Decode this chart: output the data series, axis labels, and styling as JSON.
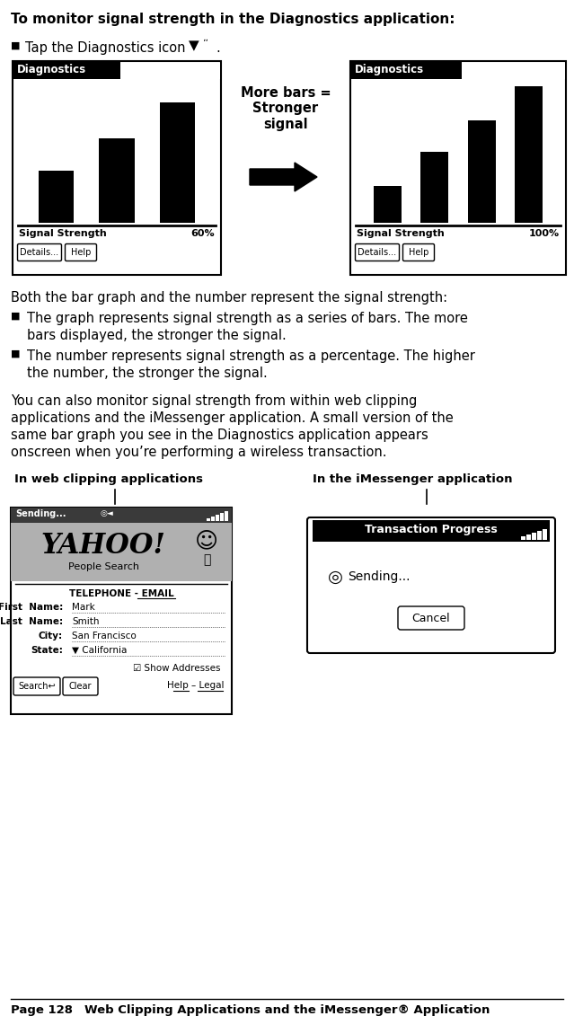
{
  "title_bold": "To monitor signal strength in the Diagnostics application:",
  "bullet1_pre": "Tap the Diagnostics icon",
  "bullet1_post": ".",
  "para1": "Both the bar graph and the number represent the signal strength:",
  "bullet2a_l1": "The graph represents signal strength as a series of bars. The more",
  "bullet2a_l2": "bars displayed, the stronger the signal.",
  "bullet2b_l1": "The number represents signal strength as a percentage. The higher",
  "bullet2b_l2": "the number, the stronger the signal.",
  "para2_l1": "You can also monitor signal strength from within web clipping",
  "para2_l2": "applications and the iMessenger application. A small version of the",
  "para2_l3": "same bar graph you see in the Diagnostics application appears",
  "para2_l4": "onscreen when you’re performing a wireless transaction.",
  "label_web": "In web clipping applications",
  "label_imessenger": "In the iMessenger application",
  "footer_left": "Page 128",
  "footer_right": "Web Clipping Applications and the iMessenger® Application",
  "diag_title": "Diagnostics",
  "signal_label": "Signal Strength",
  "signal_60": "60%",
  "signal_100": "100%",
  "more_bars_text": "More bars =\nStronger\nsignal",
  "sending_text": "Sending...",
  "transaction_title": "Transaction Progress",
  "cancel_text": "Cancel",
  "telephone_text": "TELEPHONE - EMAIL",
  "people_search": "People Search",
  "yahoo_text": "YAHOO!",
  "field_labels": [
    "First  Name:",
    "Last  Name:",
    "City:",
    "State:"
  ],
  "field_values": [
    "Mark",
    "Smith",
    "San Francisco",
    "▼ California"
  ],
  "show_addresses": "☑ Show Addresses",
  "search_btn": "Search↩",
  "clear_btn": "Clear",
  "help_legal": "Help – Legal",
  "bg_color": "#ffffff"
}
